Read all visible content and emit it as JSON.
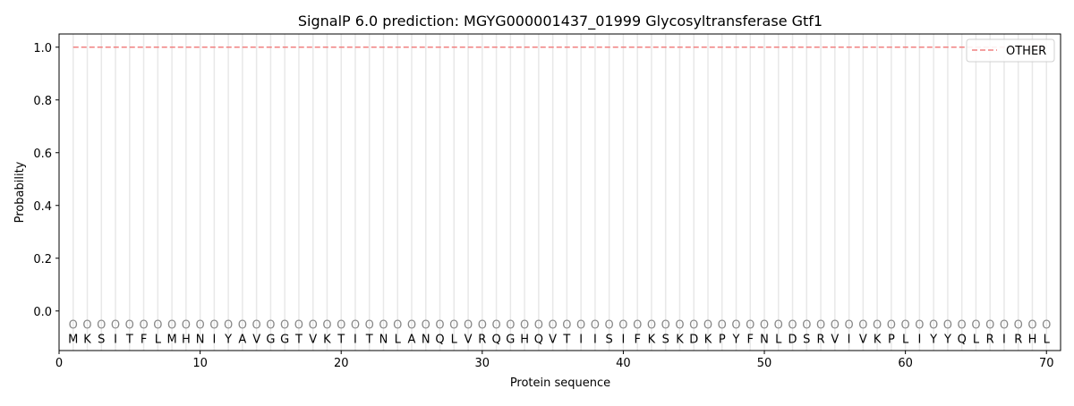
{
  "chart_data": {
    "type": "line",
    "title": "SignalP 6.0 prediction: MGYG000001437_01999 Glycosyltransferase Gtf1",
    "xlabel": "Protein sequence",
    "ylabel": "Probability",
    "xlim": [
      0,
      71
    ],
    "ylim": [
      -0.15,
      1.05
    ],
    "xticks": [
      0,
      10,
      20,
      30,
      40,
      50,
      60,
      70
    ],
    "yticks": [
      0.0,
      0.2,
      0.4,
      0.6,
      0.8,
      1.0
    ],
    "yticklabels": [
      "0.0",
      "0.2",
      "0.4",
      "0.6",
      "0.8",
      "1.0"
    ],
    "grid": "vertical lines at each residue",
    "legend_position": "top-right",
    "sequence": "MKSITFLMHNIYAVGGTVKTITNLANQLVRQGHQVTIISIFKSKDKPYFNLDSRVIVKPLIYYQLRIRHL",
    "predicted_label": "O",
    "series": [
      {
        "name": "OTHER",
        "color": "#f08080",
        "style": "dashed",
        "x_range": [
          1,
          70
        ],
        "value": 1.0
      }
    ]
  }
}
